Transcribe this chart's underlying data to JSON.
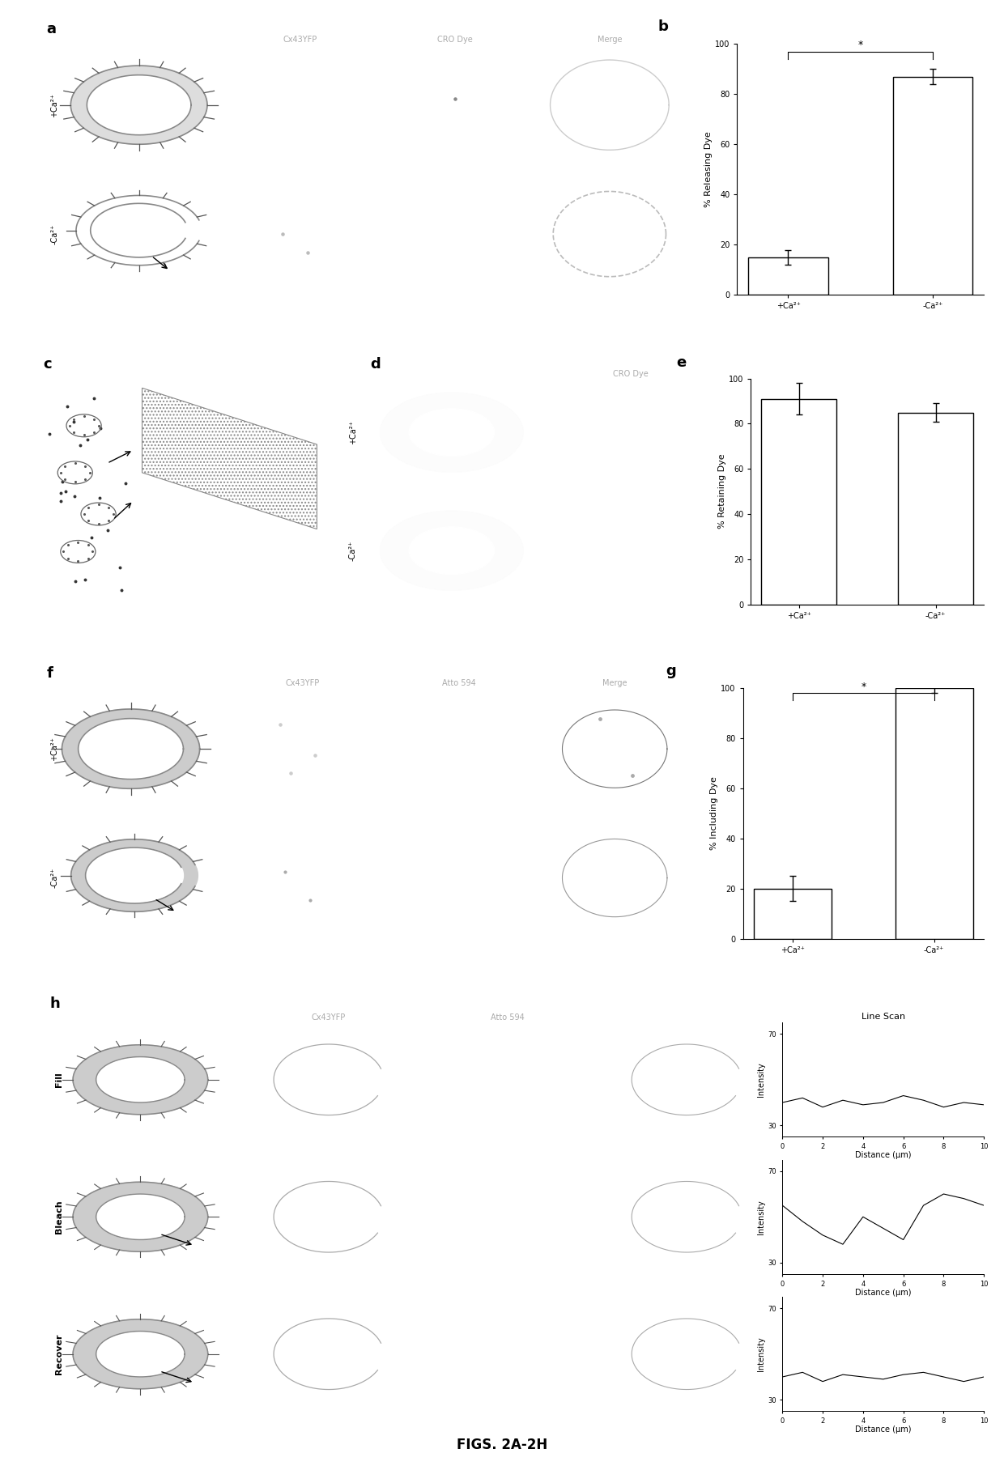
{
  "fig_width": 12.4,
  "fig_height": 18.16,
  "bg_color": "#ffffff",
  "title": "FIGS. 2A-2H",
  "panel_b": {
    "categories": [
      "+Ca²⁺",
      "-Ca²⁺"
    ],
    "values": [
      15,
      87
    ],
    "errors": [
      3,
      3
    ],
    "ylabel": "% Releasing Dye",
    "ylim": [
      0,
      100
    ],
    "yticks": [
      0,
      20,
      40,
      60,
      80,
      100
    ],
    "bar_color": "#ffffff",
    "edge_color": "#000000",
    "bar_width": 0.55,
    "significance_bracket": true,
    "star_text": "*"
  },
  "panel_e": {
    "categories": [
      "+Ca²⁺",
      "-Ca²⁺"
    ],
    "values": [
      91,
      85
    ],
    "errors": [
      7,
      4
    ],
    "ylabel": "% Retaining Dye",
    "ylim": [
      0,
      100
    ],
    "yticks": [
      0,
      20,
      40,
      60,
      80,
      100
    ],
    "bar_color": "#ffffff",
    "edge_color": "#000000",
    "bar_width": 0.55,
    "significance_bracket": false
  },
  "panel_g": {
    "categories": [
      "+Ca²⁺",
      "-Ca²⁺"
    ],
    "values": [
      20,
      100
    ],
    "errors": [
      5,
      2
    ],
    "ylabel": "% Including Dye",
    "ylim": [
      0,
      100
    ],
    "yticks": [
      0,
      20,
      40,
      60,
      80,
      100
    ],
    "bar_color": "#ffffff",
    "edge_color": "#000000",
    "bar_width": 0.55,
    "significance_bracket": true,
    "star_text": "*"
  },
  "line_scan_fill": {
    "x": [
      0,
      1,
      2,
      3,
      4,
      5,
      6,
      7,
      8,
      9,
      10
    ],
    "y_noise": [
      40,
      42,
      38,
      41,
      39,
      40,
      43,
      41,
      38,
      40,
      39
    ],
    "ylim": [
      25,
      75
    ],
    "yticks": [
      30,
      70
    ],
    "ylabel": "Intensity",
    "xlabel": "Distance (μm)",
    "xticks": [
      0,
      2,
      4,
      6,
      8,
      10
    ]
  },
  "line_scan_bleach": {
    "x": [
      0,
      1,
      2,
      3,
      4,
      5,
      6,
      7,
      8,
      9,
      10
    ],
    "y_noise": [
      55,
      48,
      42,
      38,
      50,
      45,
      40,
      55,
      60,
      58,
      55
    ],
    "ylim": [
      25,
      75
    ],
    "yticks": [
      30,
      70
    ],
    "ylabel": "Intensity",
    "xlabel": "Distance (μm)",
    "xticks": [
      0,
      2,
      4,
      6,
      8,
      10
    ]
  },
  "line_scan_recover": {
    "x": [
      0,
      1,
      2,
      3,
      4,
      5,
      6,
      7,
      8,
      9,
      10
    ],
    "y_noise": [
      40,
      42,
      38,
      41,
      40,
      39,
      41,
      42,
      40,
      38,
      40
    ],
    "ylim": [
      25,
      75
    ],
    "yticks": [
      30,
      70
    ],
    "ylabel": "Intensity",
    "xlabel": "Distance (μm)",
    "xticks": [
      0,
      2,
      4,
      6,
      8,
      10
    ]
  }
}
